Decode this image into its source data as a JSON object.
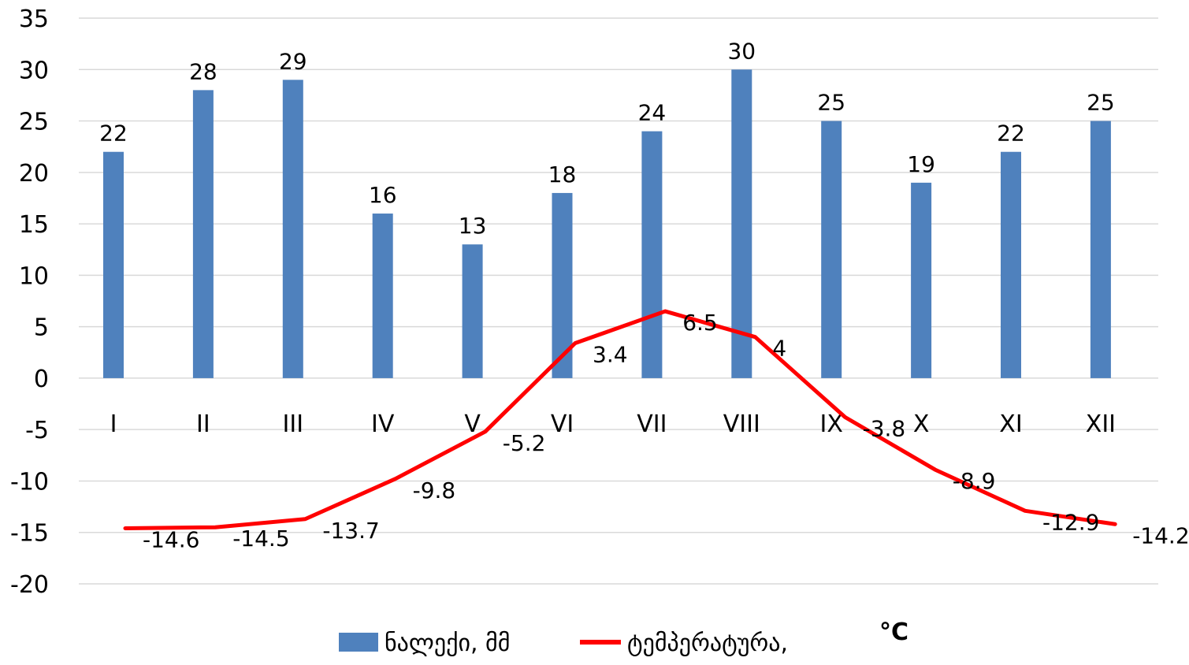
{
  "chart_data": {
    "type": "bar+line",
    "categories": [
      "I",
      "II",
      "III",
      "IV",
      "V",
      "VI",
      "VII",
      "VIII",
      "IX",
      "X",
      "XI",
      "XII"
    ],
    "series": [
      {
        "name": "ნალექი, მმ",
        "type": "bar",
        "color": "#4f81bd",
        "values": [
          22,
          28,
          29,
          16,
          13,
          18,
          24,
          30,
          25,
          19,
          22,
          25
        ]
      },
      {
        "name": "ტემპერატურა,",
        "type": "line",
        "color": "#ff0000",
        "values": [
          -14.6,
          -14.5,
          -13.7,
          -9.8,
          -5.2,
          3.4,
          6.5,
          4,
          -3.8,
          -8.9,
          -12.9,
          -14.2
        ]
      }
    ],
    "ylim": [
      -20,
      35
    ],
    "yticks": [
      35,
      30,
      25,
      20,
      15,
      10,
      5,
      0,
      -5,
      -10,
      -15,
      -20
    ],
    "legend_unit": "°C",
    "legend_position": "bottom",
    "grid": true,
    "gridline_color": "#d9d9d9"
  }
}
